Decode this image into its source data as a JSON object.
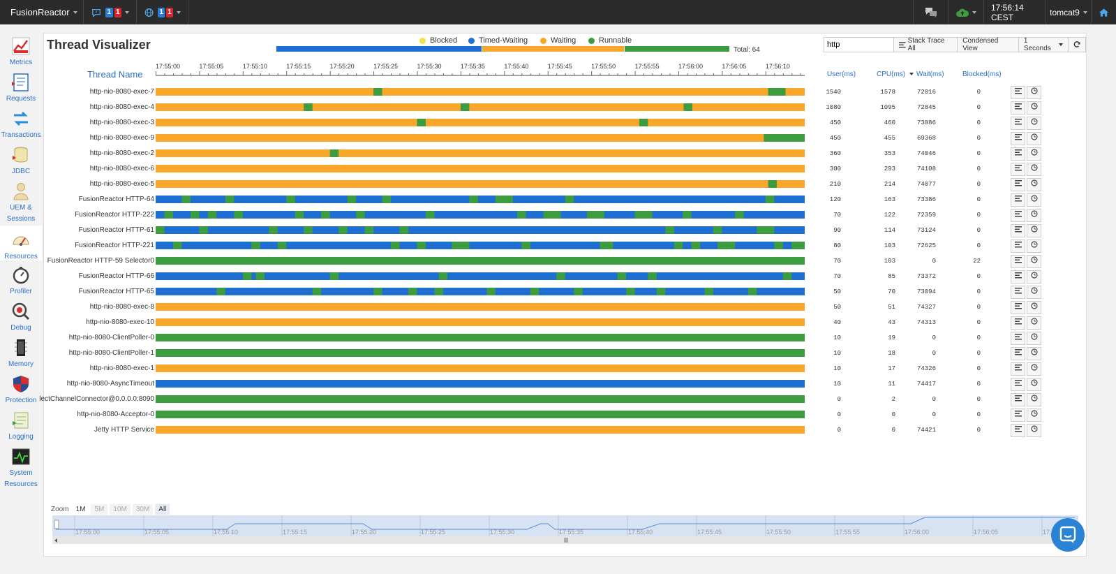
{
  "topbar": {
    "brand": "FusionReactor",
    "notif_badges": [
      "1",
      "1"
    ],
    "globe_badges": [
      "1",
      "1"
    ],
    "clock": "17:56:14 CEST",
    "user": "tomcat9"
  },
  "sidebar": {
    "items": [
      {
        "label": "Metrics",
        "icon": "metrics-icon"
      },
      {
        "label": "Requests",
        "icon": "requests-icon"
      },
      {
        "label": "Transactions",
        "icon": "transactions-icon"
      },
      {
        "label": "JDBC",
        "icon": "jdbc-icon"
      },
      {
        "label": "UEM &",
        "label2": "Sessions",
        "icon": "uem-icon"
      },
      {
        "label": "Resources",
        "icon": "resources-icon"
      },
      {
        "label": "Profiler",
        "icon": "profiler-icon"
      },
      {
        "label": "Debug",
        "icon": "debug-icon"
      },
      {
        "label": "Memory",
        "icon": "memory-icon"
      },
      {
        "label": "Protection",
        "icon": "protection-icon"
      },
      {
        "label": "Logging",
        "icon": "logging-icon"
      },
      {
        "label": "System",
        "label2": "Resources",
        "icon": "system-resources-icon"
      }
    ]
  },
  "page": {
    "title": "Thread Visualizer",
    "legend": [
      {
        "label": "Blocked",
        "color": "#f5e04a"
      },
      {
        "label": "Timed-Waiting",
        "color": "#1f6fd2"
      },
      {
        "label": "Waiting",
        "color": "#f9a72b"
      },
      {
        "label": "Runnable",
        "color": "#3d9c3d"
      }
    ],
    "total_label": "Total: 64",
    "search_value": "http",
    "btn_stack_trace": "Stack Trace All",
    "btn_condensed": "Condensed View",
    "btn_interval": "1 Seconds",
    "col_thread": "Thread Name",
    "col_user": "User(ms)",
    "col_cpu": "CPU(ms)",
    "col_wait": "Wait(ms)",
    "col_blocked": "Blocked(ms)"
  },
  "colors": {
    "timed_waiting": "#1f6fd2",
    "waiting": "#f9a72b",
    "runnable": "#3d9c3d",
    "blocked": "#f5e04a"
  },
  "timeline": {
    "ticks": [
      "17:55:00",
      "17:55:05",
      "17:55:10",
      "17:55:15",
      "17:55:20",
      "17:55:25",
      "17:55:30",
      "17:55:35",
      "17:55:40",
      "17:55:45",
      "17:55:50",
      "17:55:55",
      "17:56:00",
      "17:56:05",
      "17:56:10"
    ],
    "start_seconds": 0,
    "end_seconds": 74.5
  },
  "state_distribution": {
    "timed_waiting": 0.39,
    "waiting": 0.27,
    "runnable": 0.2
  },
  "threads": [
    {
      "name": "http-nio-8080-exec-7",
      "user": "1540",
      "cpu": "1578",
      "wait": "72016",
      "blocked": "0",
      "base": "W",
      "runs": [
        [
          25.0,
          26.0
        ],
        [
          70.3,
          72.3
        ]
      ]
    },
    {
      "name": "http-nio-8080-exec-4",
      "user": "1080",
      "cpu": "1095",
      "wait": "72845",
      "blocked": "0",
      "base": "W",
      "runs": [
        [
          17.0,
          18.0
        ],
        [
          35.0,
          36.0
        ],
        [
          60.6,
          61.6
        ]
      ]
    },
    {
      "name": "http-nio-8080-exec-3",
      "user": "450",
      "cpu": "460",
      "wait": "73886",
      "blocked": "0",
      "base": "W",
      "runs": [
        [
          30.0,
          31.0
        ],
        [
          55.5,
          56.5
        ]
      ]
    },
    {
      "name": "http-nio-8080-exec-9",
      "user": "450",
      "cpu": "455",
      "wait": "69368",
      "blocked": "0",
      "base": "W",
      "runs": [
        [
          69.8,
          74.5
        ]
      ]
    },
    {
      "name": "http-nio-8080-exec-2",
      "user": "360",
      "cpu": "353",
      "wait": "74046",
      "blocked": "0",
      "base": "W",
      "runs": [
        [
          20.0,
          21.0
        ]
      ]
    },
    {
      "name": "http-nio-8080-exec-6",
      "user": "300",
      "cpu": "293",
      "wait": "74108",
      "blocked": "0",
      "base": "W",
      "runs": []
    },
    {
      "name": "http-nio-8080-exec-5",
      "user": "210",
      "cpu": "214",
      "wait": "74077",
      "blocked": "0",
      "base": "W",
      "runs": [
        [
          70.3,
          71.3
        ]
      ]
    },
    {
      "name": "FusionReactor HTTP-64",
      "user": "120",
      "cpu": "163",
      "wait": "73386",
      "blocked": "0",
      "base": "T",
      "runs": [
        [
          3.0,
          4.0
        ],
        [
          8.0,
          9.0
        ],
        [
          15.0,
          16.0
        ],
        [
          22.0,
          23.0
        ],
        [
          26.0,
          27.0
        ],
        [
          36.0,
          37.0
        ],
        [
          39.0,
          41.0
        ],
        [
          47.0,
          48.0
        ],
        [
          70.0,
          71.0
        ]
      ]
    },
    {
      "name": "FusionReactor HTTP-222",
      "user": "70",
      "cpu": "122",
      "wait": "72359",
      "blocked": "0",
      "base": "T",
      "runs": [
        [
          1.0,
          2.0
        ],
        [
          4.0,
          5.0
        ],
        [
          6.0,
          7.0
        ],
        [
          9.0,
          10.0
        ],
        [
          16.0,
          17.0
        ],
        [
          19.0,
          20.0
        ],
        [
          23.0,
          24.0
        ],
        [
          31.0,
          32.0
        ],
        [
          41.5,
          42.5
        ],
        [
          44.5,
          46.5
        ],
        [
          49.5,
          51.5
        ],
        [
          55.0,
          57.0
        ],
        [
          60.5,
          61.5
        ],
        [
          66.5,
          67.5
        ]
      ]
    },
    {
      "name": "FusionReactor HTTP-61",
      "user": "90",
      "cpu": "114",
      "wait": "73124",
      "blocked": "0",
      "base": "T",
      "runs": [
        [
          0.0,
          1.0
        ],
        [
          5.0,
          6.0
        ],
        [
          13.0,
          14.0
        ],
        [
          17.0,
          18.0
        ],
        [
          21.0,
          22.0
        ],
        [
          24.0,
          25.0
        ],
        [
          28.0,
          29.0
        ],
        [
          58.5,
          59.5
        ],
        [
          64.0,
          65.0
        ],
        [
          69.0,
          71.0
        ]
      ]
    },
    {
      "name": "FusionReactor HTTP-221",
      "user": "80",
      "cpu": "103",
      "wait": "72625",
      "blocked": "0",
      "base": "T",
      "runs": [
        [
          2.0,
          3.0
        ],
        [
          11.0,
          12.0
        ],
        [
          14.0,
          15.0
        ],
        [
          27.0,
          28.0
        ],
        [
          30.0,
          31.0
        ],
        [
          34.0,
          36.0
        ],
        [
          42.0,
          43.0
        ],
        [
          51.0,
          52.5
        ],
        [
          59.5,
          60.5
        ],
        [
          61.5,
          62.5
        ],
        [
          64.5,
          66.5
        ],
        [
          71.0,
          72.0
        ],
        [
          73.0,
          74.5
        ]
      ]
    },
    {
      "name": "FusionReactor HTTP-59 Selector0",
      "user": "70",
      "cpu": "103",
      "wait": "0",
      "blocked": "22",
      "base": "R",
      "runs": []
    },
    {
      "name": "FusionReactor HTTP-66",
      "user": "70",
      "cpu": "85",
      "wait": "73372",
      "blocked": "0",
      "base": "T",
      "runs": [
        [
          10.0,
          11.0
        ],
        [
          11.5,
          12.5
        ],
        [
          20.0,
          21.0
        ],
        [
          32.5,
          33.5
        ],
        [
          46.0,
          47.0
        ],
        [
          53.0,
          54.0
        ],
        [
          56.5,
          57.5
        ],
        [
          72.0,
          73.0
        ]
      ]
    },
    {
      "name": "FusionReactor HTTP-65",
      "user": "50",
      "cpu": "70",
      "wait": "73094",
      "blocked": "0",
      "base": "T",
      "runs": [
        [
          7.0,
          8.0
        ],
        [
          18.0,
          19.0
        ],
        [
          25.0,
          26.0
        ],
        [
          29.0,
          30.0
        ],
        [
          32.0,
          33.0
        ],
        [
          38.0,
          39.0
        ],
        [
          43.0,
          44.0
        ],
        [
          48.0,
          49.0
        ],
        [
          54.0,
          55.0
        ],
        [
          57.5,
          58.5
        ],
        [
          63.0,
          64.0
        ],
        [
          68.0,
          69.0
        ]
      ]
    },
    {
      "name": "http-nio-8080-exec-8",
      "user": "50",
      "cpu": "51",
      "wait": "74327",
      "blocked": "0",
      "base": "W",
      "runs": []
    },
    {
      "name": "http-nio-8080-exec-10",
      "user": "40",
      "cpu": "43",
      "wait": "74313",
      "blocked": "0",
      "base": "W",
      "runs": []
    },
    {
      "name": "http-nio-8080-ClientPoller-0",
      "user": "10",
      "cpu": "19",
      "wait": "0",
      "blocked": "0",
      "base": "R",
      "runs": []
    },
    {
      "name": "http-nio-8080-ClientPoller-1",
      "user": "10",
      "cpu": "18",
      "wait": "0",
      "blocked": "0",
      "base": "R",
      "runs": []
    },
    {
      "name": "http-nio-8080-exec-1",
      "user": "10",
      "cpu": "17",
      "wait": "74326",
      "blocked": "0",
      "base": "W",
      "runs": []
    },
    {
      "name": "http-nio-8080-AsyncTimeout",
      "user": "10",
      "cpu": "11",
      "wait": "74417",
      "blocked": "0",
      "base": "T",
      "runs": []
    },
    {
      "name": "lectChannelConnector@0.0.0.0:8090",
      "user": "0",
      "cpu": "2",
      "wait": "0",
      "blocked": "0",
      "base": "R",
      "runs": []
    },
    {
      "name": "http-nio-8080-Acceptor-0",
      "user": "0",
      "cpu": "0",
      "wait": "0",
      "blocked": "0",
      "base": "R",
      "runs": []
    },
    {
      "name": "Jetty HTTP Service",
      "user": "0",
      "cpu": "0",
      "wait": "74421",
      "blocked": "0",
      "base": "W",
      "runs": []
    }
  ],
  "zoom": {
    "label": "Zoom",
    "options": [
      "1M",
      "5M",
      "10M",
      "30M",
      "All"
    ],
    "navigator_ticks": [
      "17:55:00",
      "17:55:05",
      "17:55:10",
      "17:55:15",
      "17:55:20",
      "17:55:25",
      "17:55:30",
      "17:55:35",
      "17:55:40",
      "17:55:45",
      "17:55:50",
      "17:55:55",
      "17:56:00",
      "17:56:05",
      "17:56:10"
    ]
  }
}
